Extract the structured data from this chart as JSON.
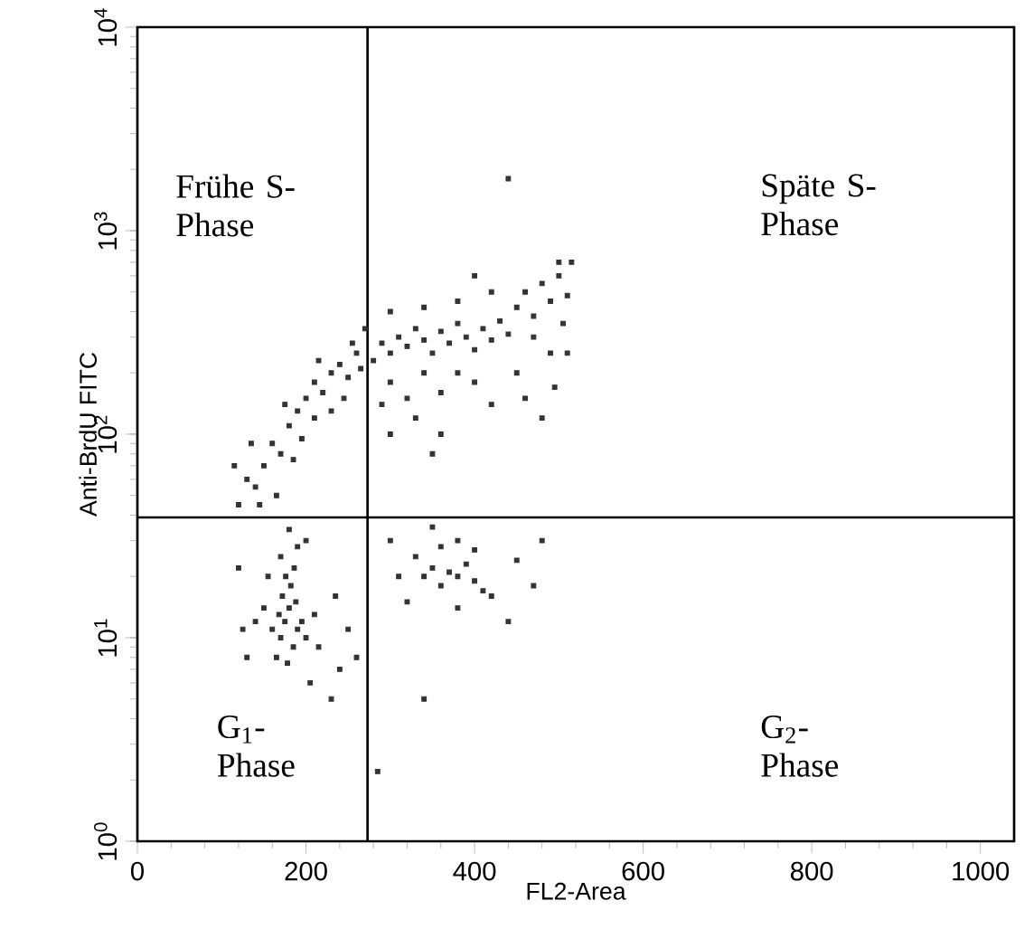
{
  "chart_data": {
    "type": "scatter",
    "xlabel": "FL2-Area",
    "ylabel": "Anti-BrdU FITC",
    "color": "#333333",
    "marker": "square",
    "log": "y",
    "xlim": [
      0,
      1040
    ],
    "ylim": [
      1,
      10000
    ],
    "xticks": [
      0,
      200,
      400,
      600,
      800,
      1000
    ],
    "yticks": [
      {
        "value": 1,
        "label": "10$^{0}$"
      },
      {
        "value": 10,
        "label": "10$^{1}$"
      },
      {
        "value": 100,
        "label": "10$^{2}$"
      },
      {
        "value": 1000,
        "label": "10$^{3}$"
      },
      {
        "value": 10000,
        "label": "10$^{4}$"
      }
    ],
    "ref_lines": [
      {
        "axis": "x",
        "value": 273,
        "color": "#000000"
      },
      {
        "axis": "y",
        "value": 39,
        "color": "#000000"
      }
    ],
    "annotations": [
      "Frühe S-Phase",
      "Späte S-Phase",
      "G$_{1}$-Phase",
      "G$_{2}$-Phase"
    ],
    "x": [
      165,
      170,
      175,
      180,
      185,
      190,
      172,
      182,
      168,
      178,
      188,
      195,
      160,
      200,
      176,
      186,
      150,
      210,
      215,
      140,
      125,
      130,
      205,
      230,
      240,
      250,
      235,
      155,
      190,
      180,
      170,
      200,
      120,
      130,
      140,
      150,
      160,
      170,
      180,
      190,
      200,
      210,
      220,
      230,
      240,
      250,
      260,
      265,
      255,
      210,
      195,
      185,
      165,
      145,
      230,
      245,
      115,
      135,
      175,
      215,
      280,
      290,
      300,
      310,
      320,
      330,
      340,
      350,
      360,
      370,
      380,
      390,
      400,
      410,
      420,
      430,
      440,
      300,
      320,
      340,
      360,
      380,
      400,
      420,
      300,
      340,
      380,
      330,
      360,
      350,
      300,
      290,
      400,
      440,
      420,
      270,
      450,
      460,
      470,
      480,
      490,
      500,
      510,
      515,
      505,
      470,
      490,
      510,
      450,
      460,
      480,
      500,
      495,
      330,
      340,
      350,
      360,
      370,
      380,
      390,
      400,
      410,
      420,
      360,
      380,
      400,
      300,
      310,
      450,
      470,
      320,
      440,
      380,
      480,
      350,
      340,
      285,
      260,
      120
    ],
    "values": [
      8,
      10,
      12,
      14,
      9,
      11,
      16,
      18,
      13,
      7.5,
      15,
      12,
      11,
      10,
      20,
      22,
      14,
      13,
      9,
      12,
      11,
      8,
      6,
      5,
      7,
      11,
      16,
      20,
      28,
      34,
      25,
      30,
      45,
      60,
      55,
      70,
      90,
      80,
      110,
      130,
      150,
      180,
      160,
      200,
      220,
      190,
      250,
      210,
      280,
      120,
      95,
      75,
      50,
      45,
      130,
      150,
      70,
      90,
      140,
      230,
      230,
      280,
      250,
      300,
      270,
      330,
      290,
      250,
      320,
      280,
      350,
      300,
      260,
      330,
      290,
      360,
      310,
      180,
      150,
      200,
      160,
      200,
      180,
      140,
      400,
      420,
      450,
      120,
      100,
      80,
      100,
      140,
      600,
      1800,
      500,
      330,
      420,
      500,
      380,
      550,
      450,
      600,
      480,
      700,
      350,
      300,
      250,
      250,
      200,
      150,
      120,
      700,
      170,
      25,
      20,
      22,
      18,
      21,
      20,
      23,
      19,
      17,
      16,
      28,
      30,
      27,
      30,
      20,
      24,
      18,
      15,
      12,
      14,
      30,
      35,
      5,
      2.2,
      8,
      22
    ]
  }
}
